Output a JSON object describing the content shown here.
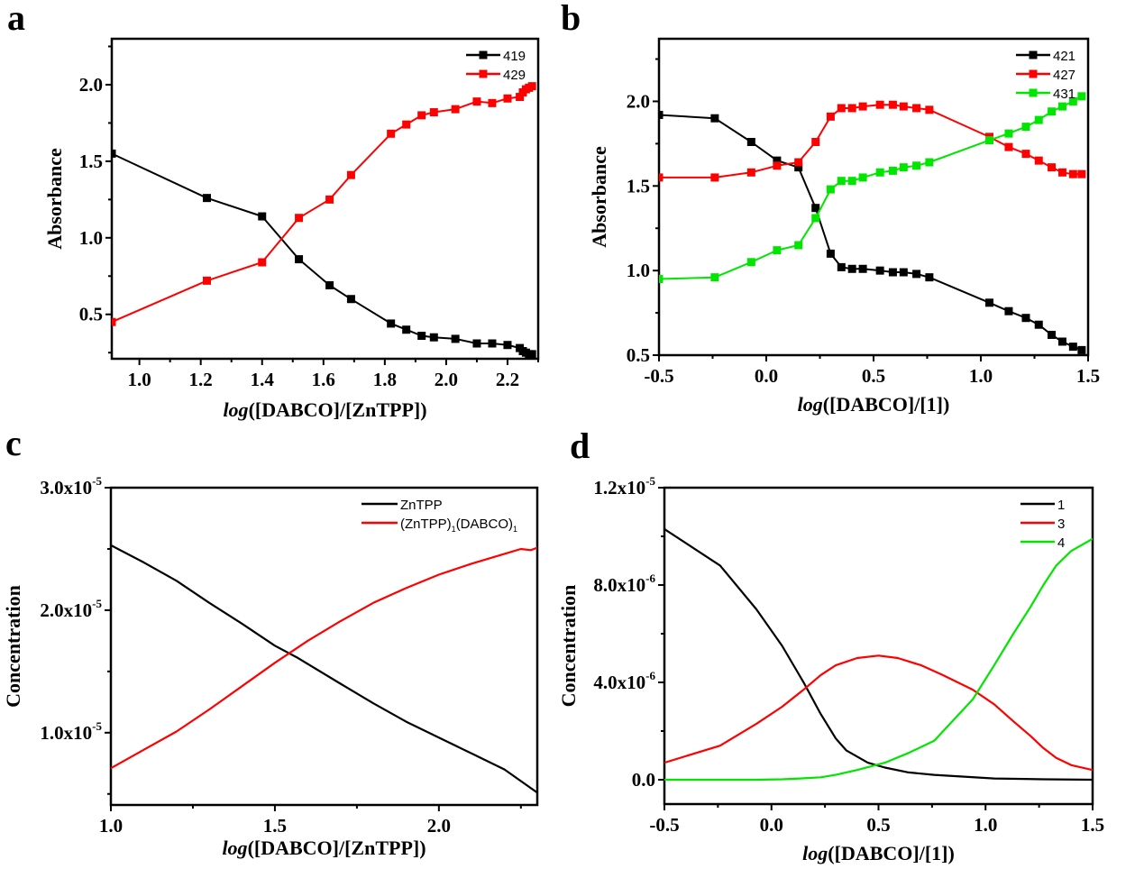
{
  "colors": {
    "black": "#000000",
    "red": "#ff0000",
    "green": "#00e600"
  },
  "chart_data": [
    {
      "panel": "a",
      "type": "line",
      "markers": true,
      "title": "",
      "xlabel_italic": "log",
      "xlabel_rest": "([DABCO]/[ZnTPP])",
      "ylabel": "Absorbance",
      "xlim": [
        0.91,
        2.3
      ],
      "ylim": [
        0.21,
        2.3
      ],
      "xticks": [
        1.0,
        1.2,
        1.4,
        1.6,
        1.8,
        2.0,
        2.2
      ],
      "xtick_labels": [
        "1.0",
        "1.2",
        "1.4",
        "1.6",
        "1.8",
        "2.0",
        "2.2"
      ],
      "yticks": [
        0.5,
        1.0,
        1.5,
        2.0
      ],
      "ytick_labels": [
        "0.5",
        "1.0",
        "1.5",
        "2.0"
      ],
      "legend_position": "top-right",
      "x": [
        0.91,
        1.22,
        1.4,
        1.52,
        1.62,
        1.69,
        1.82,
        1.87,
        1.92,
        1.96,
        2.03,
        2.1,
        2.15,
        2.2,
        2.24,
        2.25,
        2.26,
        2.27,
        2.28
      ],
      "series": [
        {
          "name": "419",
          "color": "#000000",
          "values": [
            1.55,
            1.26,
            1.14,
            0.86,
            0.69,
            0.6,
            0.44,
            0.4,
            0.36,
            0.35,
            0.34,
            0.31,
            0.31,
            0.3,
            0.28,
            0.26,
            0.25,
            0.24,
            0.24
          ]
        },
        {
          "name": "429",
          "color": "#ff0000",
          "values": [
            0.45,
            0.72,
            0.84,
            1.13,
            1.25,
            1.41,
            1.68,
            1.74,
            1.8,
            1.82,
            1.84,
            1.89,
            1.88,
            1.91,
            1.92,
            1.95,
            1.97,
            1.98,
            1.99
          ]
        }
      ]
    },
    {
      "panel": "b",
      "type": "line",
      "markers": true,
      "title": "",
      "xlabel_italic": "log",
      "xlabel_rest": "([DABCO]/[1])",
      "ylabel": "Absorbance",
      "xlim": [
        -0.5,
        1.5
      ],
      "ylim": [
        0.5,
        2.37
      ],
      "xticks": [
        -0.5,
        0.0,
        0.5,
        1.0,
        1.5
      ],
      "xtick_labels": [
        "-0.5",
        "0.0",
        "0.5",
        "1.0",
        "1.5"
      ],
      "yticks": [
        0.5,
        1.0,
        1.5,
        2.0
      ],
      "ytick_labels": [
        "0.5",
        "1.0",
        "1.5",
        "2.0"
      ],
      "legend_position": "top-right",
      "x": [
        -0.5,
        -0.24,
        -0.07,
        0.05,
        0.15,
        0.23,
        0.3,
        0.35,
        0.4,
        0.45,
        0.53,
        0.59,
        0.64,
        0.7,
        0.76,
        1.04,
        1.13,
        1.21,
        1.27,
        1.33,
        1.38,
        1.43,
        1.47
      ],
      "series": [
        {
          "name": "421",
          "color": "#000000",
          "values": [
            1.92,
            1.9,
            1.76,
            1.65,
            1.61,
            1.37,
            1.1,
            1.02,
            1.01,
            1.01,
            1.0,
            0.99,
            0.99,
            0.98,
            0.96,
            0.81,
            0.76,
            0.72,
            0.68,
            0.62,
            0.58,
            0.55,
            0.53
          ]
        },
        {
          "name": "427",
          "color": "#ff0000",
          "values": [
            1.55,
            1.55,
            1.58,
            1.62,
            1.64,
            1.76,
            1.91,
            1.96,
            1.96,
            1.97,
            1.98,
            1.98,
            1.97,
            1.96,
            1.95,
            1.79,
            1.73,
            1.69,
            1.65,
            1.61,
            1.58,
            1.57,
            1.57
          ]
        },
        {
          "name": "431",
          "color": "#00e600",
          "values": [
            0.95,
            0.96,
            1.05,
            1.12,
            1.15,
            1.31,
            1.48,
            1.53,
            1.53,
            1.55,
            1.58,
            1.59,
            1.61,
            1.62,
            1.64,
            1.77,
            1.81,
            1.85,
            1.89,
            1.94,
            1.97,
            2.0,
            2.03
          ]
        }
      ]
    },
    {
      "panel": "c",
      "type": "line",
      "markers": false,
      "title": "",
      "xlabel_italic": "log",
      "xlabel_rest": "([DABCO]/[ZnTPP])",
      "ylabel": "Concentration",
      "xlim": [
        1.0,
        2.3
      ],
      "ylim": [
        4.1e-06,
        3e-05
      ],
      "xticks": [
        1.0,
        1.5,
        2.0
      ],
      "xtick_labels": [
        "1.0",
        "1.5",
        "2.0"
      ],
      "yticks": [
        1e-05,
        2e-05,
        3e-05
      ],
      "ytick_labels": [
        {
          "mantissa": "1.0x10",
          "exp": "-5"
        },
        {
          "mantissa": "2.0x10",
          "exp": "-5"
        },
        {
          "mantissa": "3.0x10",
          "exp": "-5"
        }
      ],
      "legend_position": "top-right",
      "series": [
        {
          "name": "ZnTPP",
          "label_main": "ZnTPP",
          "color": "#000000",
          "x": [
            1.0,
            1.1,
            1.2,
            1.3,
            1.4,
            1.5,
            1.57,
            1.7,
            1.8,
            1.9,
            2.0,
            2.1,
            2.2,
            2.3
          ],
          "values": [
            2.53e-05,
            2.39e-05,
            2.24e-05,
            2.06e-05,
            1.89e-05,
            1.71e-05,
            1.61e-05,
            1.4e-05,
            1.24e-05,
            1.09e-05,
            9.6e-06,
            8.3e-06,
            7e-06,
            5.1e-06
          ]
        },
        {
          "name": "(ZnTPP)1(DABCO)1",
          "label_parts": [
            "(ZnTPP)",
            "1",
            "(DABCO)",
            "1"
          ],
          "color": "#ff0000",
          "x": [
            1.0,
            1.1,
            1.2,
            1.3,
            1.4,
            1.5,
            1.6,
            1.7,
            1.8,
            1.9,
            2.0,
            2.1,
            2.2,
            2.25,
            2.28,
            2.3
          ],
          "values": [
            7.1e-06,
            8.6e-06,
            1.01e-05,
            1.19e-05,
            1.38e-05,
            1.57e-05,
            1.75e-05,
            1.91e-05,
            2.06e-05,
            2.18e-05,
            2.29e-05,
            2.38e-05,
            2.46e-05,
            2.5e-05,
            2.49e-05,
            2.51e-05
          ]
        }
      ]
    },
    {
      "panel": "d",
      "type": "line",
      "markers": false,
      "title": "",
      "xlabel_italic": "log",
      "xlabel_rest": "([DABCO]/[1])",
      "ylabel": "Concentration",
      "xlim": [
        -0.5,
        1.5
      ],
      "ylim": [
        -1e-06,
        1.2e-05
      ],
      "xticks": [
        -0.5,
        0.0,
        0.5,
        1.0,
        1.5
      ],
      "xtick_labels": [
        "-0.5",
        "0.0",
        "0.5",
        "1.0",
        "1.5"
      ],
      "yticks": [
        0.0,
        4e-06,
        8e-06,
        1.2e-05
      ],
      "ytick_labels": [
        {
          "mantissa": "0.0",
          "exp": ""
        },
        {
          "mantissa": "4.0x10",
          "exp": "-6"
        },
        {
          "mantissa": "8.0x10",
          "exp": "-6"
        },
        {
          "mantissa": "1.2x10",
          "exp": "-5"
        }
      ],
      "legend_position": "top-right",
      "series": [
        {
          "name": "1",
          "color": "#000000",
          "x": [
            -0.5,
            -0.24,
            -0.07,
            0.05,
            0.15,
            0.23,
            0.3,
            0.35,
            0.45,
            0.53,
            0.64,
            0.76,
            1.04,
            1.27,
            1.5
          ],
          "values": [
            1.03e-05,
            8.8e-06,
            7e-06,
            5.5e-06,
            4e-06,
            2.7e-06,
            1.7e-06,
            1.2e-06,
            7e-07,
            5e-07,
            3e-07,
            2e-07,
            5e-08,
            2e-08,
            0.0
          ]
        },
        {
          "name": "3",
          "color": "#ff0000",
          "x": [
            -0.5,
            -0.24,
            -0.07,
            0.05,
            0.15,
            0.23,
            0.3,
            0.4,
            0.5,
            0.59,
            0.7,
            0.8,
            0.94,
            1.04,
            1.13,
            1.21,
            1.27,
            1.33,
            1.4,
            1.5
          ],
          "values": [
            7e-07,
            1.4e-06,
            2.3e-06,
            3e-06,
            3.7e-06,
            4.3e-06,
            4.7e-06,
            5e-06,
            5.1e-06,
            5e-06,
            4.7e-06,
            4.3e-06,
            3.7e-06,
            3.1e-06,
            2.4e-06,
            1.8e-06,
            1.3e-06,
            9e-07,
            6e-07,
            4e-07
          ]
        },
        {
          "name": "4",
          "color": "#00e600",
          "x": [
            -0.5,
            -0.24,
            -0.07,
            0.05,
            0.15,
            0.23,
            0.3,
            0.4,
            0.53,
            0.64,
            0.76,
            0.94,
            1.04,
            1.13,
            1.21,
            1.27,
            1.33,
            1.4,
            1.5
          ],
          "values": [
            0.0,
            0.0,
            0.0,
            2e-08,
            6e-08,
            1e-07,
            2e-07,
            4e-07,
            7e-07,
            1.1e-06,
            1.6e-06,
            3.3e-06,
            4.7e-06,
            6e-06,
            7.1e-06,
            8e-06,
            8.8e-06,
            9.4e-06,
            9.9e-06
          ]
        }
      ]
    }
  ]
}
